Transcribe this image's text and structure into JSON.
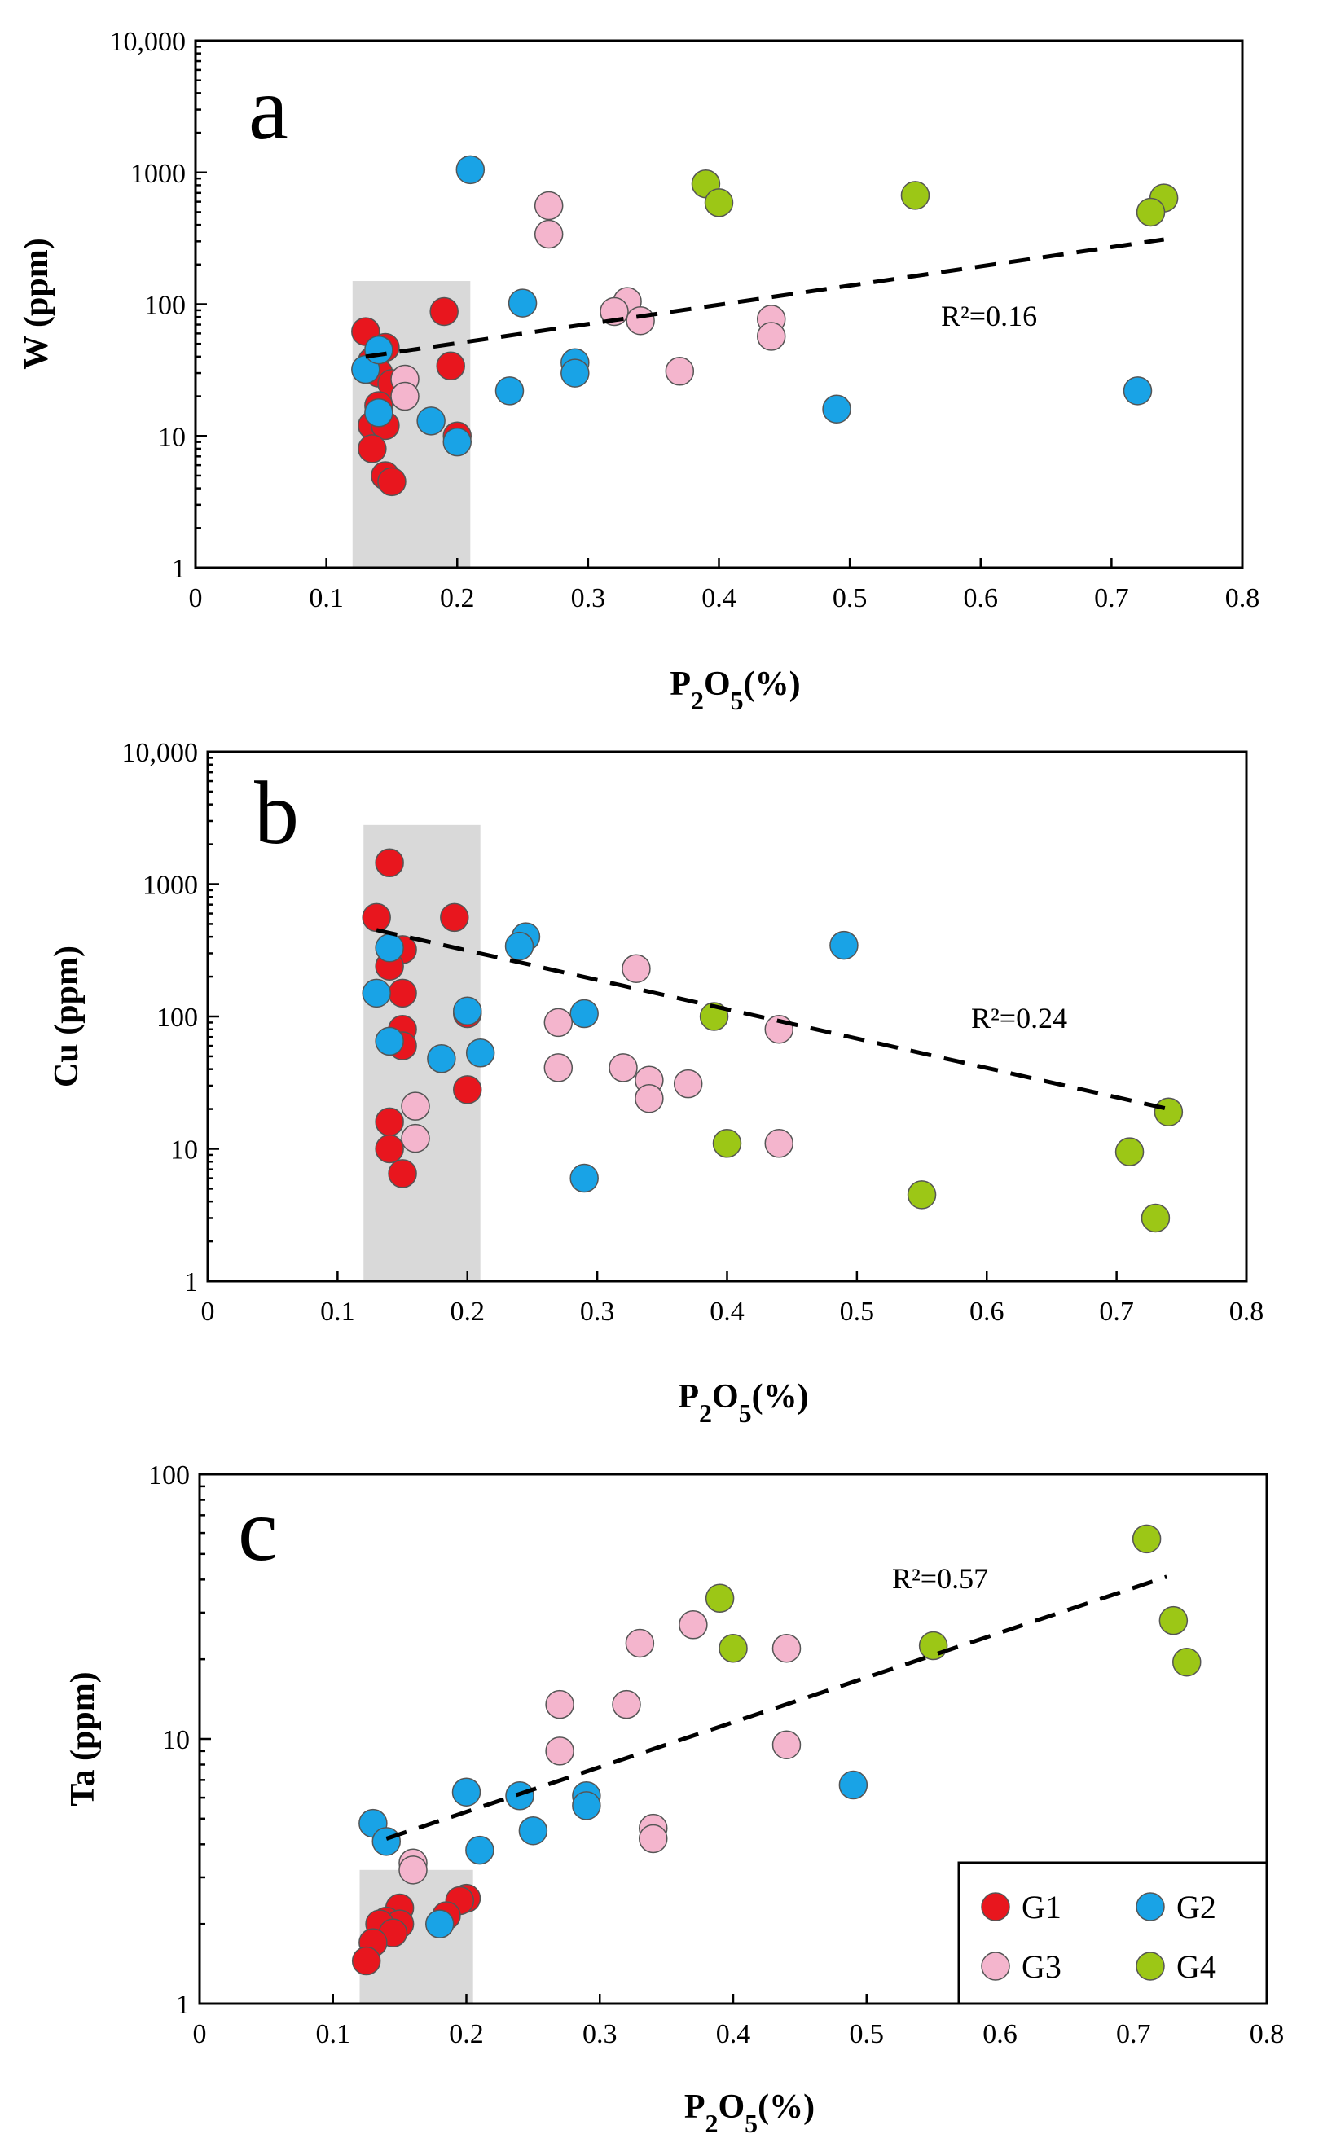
{
  "colors": {
    "G1": "#e8161e",
    "G2": "#19a3e6",
    "G3": "#f4b5cd",
    "G4": "#9cc716",
    "highlight": "#d9d9d9"
  },
  "legend": [
    {
      "key": "G1",
      "label": "G1"
    },
    {
      "key": "G2",
      "label": "G2"
    },
    {
      "key": "G3",
      "label": "G3"
    },
    {
      "key": "G4",
      "label": "G4"
    }
  ],
  "chart_data": [
    {
      "type": "scatter",
      "panel": "a",
      "xlabel": "P2O5(%)",
      "ylabel": "W (ppm)",
      "xlim": [
        0,
        0.8
      ],
      "ylim": [
        1,
        10000
      ],
      "yscale": "log",
      "xticks": [
        "0",
        "0.1",
        "0.2",
        "0.3",
        "0.4",
        "0.5",
        "0.6",
        "0.7",
        "0.8"
      ],
      "yticks": [
        "1",
        "10",
        "100",
        "1000",
        "10,000"
      ],
      "highlight": {
        "x": [
          0.12,
          0.21
        ],
        "y": [
          1,
          150
        ]
      },
      "trend": {
        "x": [
          0.13,
          0.74
        ],
        "y": [
          40,
          310
        ],
        "r2": "R²=0.16"
      },
      "series": [
        {
          "name": "G1",
          "points": [
            [
              0.13,
              62
            ],
            [
              0.135,
              37
            ],
            [
              0.14,
              30
            ],
            [
              0.145,
              47
            ],
            [
              0.15,
              25
            ],
            [
              0.14,
              17
            ],
            [
              0.135,
              12
            ],
            [
              0.145,
              12
            ],
            [
              0.135,
              8
            ],
            [
              0.145,
              5
            ],
            [
              0.15,
              4.5
            ],
            [
              0.19,
              88
            ],
            [
              0.195,
              34
            ],
            [
              0.2,
              10
            ]
          ]
        },
        {
          "name": "G2",
          "points": [
            [
              0.21,
              1050
            ],
            [
              0.25,
              102
            ],
            [
              0.29,
              36
            ],
            [
              0.29,
              30
            ],
            [
              0.24,
              22
            ],
            [
              0.13,
              32
            ],
            [
              0.14,
              45
            ],
            [
              0.14,
              15
            ],
            [
              0.18,
              13
            ],
            [
              0.2,
              9
            ],
            [
              0.49,
              16
            ],
            [
              0.72,
              22
            ]
          ]
        },
        {
          "name": "G3",
          "points": [
            [
              0.27,
              560
            ],
            [
              0.27,
              340
            ],
            [
              0.33,
              105
            ],
            [
              0.32,
              88
            ],
            [
              0.34,
              75
            ],
            [
              0.44,
              77
            ],
            [
              0.44,
              57
            ],
            [
              0.37,
              31
            ],
            [
              0.16,
              27
            ],
            [
              0.16,
              20
            ]
          ]
        },
        {
          "name": "G4",
          "points": [
            [
              0.39,
              820
            ],
            [
              0.4,
              590
            ],
            [
              0.55,
              670
            ],
            [
              0.74,
              640
            ],
            [
              0.73,
              500
            ]
          ]
        }
      ]
    },
    {
      "type": "scatter",
      "panel": "b",
      "xlabel": "P2O5(%)",
      "ylabel": "Cu (ppm)",
      "xlim": [
        0,
        0.8
      ],
      "ylim": [
        1,
        10000
      ],
      "yscale": "log",
      "xticks": [
        "0",
        "0.1",
        "0.2",
        "0.3",
        "0.4",
        "0.5",
        "0.6",
        "0.7",
        "0.8"
      ],
      "yticks": [
        "1",
        "10",
        "100",
        "1000",
        "10,000"
      ],
      "highlight": {
        "x": [
          0.12,
          0.21
        ],
        "y": [
          1,
          2800
        ]
      },
      "trend": {
        "x": [
          0.13,
          0.74
        ],
        "y": [
          450,
          20
        ],
        "r2": "R²=0.24"
      },
      "series": [
        {
          "name": "G1",
          "points": [
            [
              0.14,
              1450
            ],
            [
              0.13,
              560
            ],
            [
              0.19,
              560
            ],
            [
              0.15,
              320
            ],
            [
              0.14,
              240
            ],
            [
              0.15,
              150
            ],
            [
              0.2,
              105
            ],
            [
              0.15,
              80
            ],
            [
              0.15,
              60
            ],
            [
              0.2,
              28
            ],
            [
              0.14,
              16
            ],
            [
              0.14,
              10
            ],
            [
              0.15,
              6.5
            ]
          ]
        },
        {
          "name": "G2",
          "points": [
            [
              0.245,
              400
            ],
            [
              0.24,
              340
            ],
            [
              0.49,
              345
            ],
            [
              0.14,
              330
            ],
            [
              0.13,
              150
            ],
            [
              0.2,
              110
            ],
            [
              0.29,
              105
            ],
            [
              0.14,
              65
            ],
            [
              0.21,
              53
            ],
            [
              0.18,
              48
            ],
            [
              0.29,
              6
            ]
          ]
        },
        {
          "name": "G3",
          "points": [
            [
              0.33,
              230
            ],
            [
              0.27,
              90
            ],
            [
              0.44,
              80
            ],
            [
              0.27,
              41
            ],
            [
              0.32,
              41
            ],
            [
              0.34,
              33
            ],
            [
              0.37,
              31
            ],
            [
              0.34,
              24
            ],
            [
              0.16,
              21
            ],
            [
              0.16,
              12
            ],
            [
              0.44,
              11
            ]
          ]
        },
        {
          "name": "G4",
          "points": [
            [
              0.39,
              100
            ],
            [
              0.74,
              19
            ],
            [
              0.4,
              11
            ],
            [
              0.71,
              9.5
            ],
            [
              0.55,
              4.5
            ],
            [
              0.73,
              3
            ]
          ]
        }
      ]
    },
    {
      "type": "scatter",
      "panel": "c",
      "xlabel": "P2O5(%)",
      "ylabel": "Ta (ppm)",
      "xlim": [
        0,
        0.8
      ],
      "ylim": [
        1,
        100
      ],
      "yscale": "log",
      "xticks": [
        "0",
        "0.1",
        "0.2",
        "0.3",
        "0.4",
        "0.5",
        "0.6",
        "0.7",
        "0.8"
      ],
      "yticks": [
        "1",
        "10",
        "100"
      ],
      "highlight": {
        "x": [
          0.12,
          0.205
        ],
        "y": [
          1,
          3.2
        ]
      },
      "trend": {
        "x": [
          0.14,
          0.725
        ],
        "y": [
          4.2,
          41
        ],
        "r2": "R²=0.57"
      },
      "series": [
        {
          "name": "G1",
          "points": [
            [
              0.2,
              2.5
            ],
            [
              0.195,
              2.45
            ],
            [
              0.15,
              2.3
            ],
            [
              0.14,
              2.05
            ],
            [
              0.15,
              2.0
            ],
            [
              0.135,
              2.0
            ],
            [
              0.145,
              1.85
            ],
            [
              0.185,
              2.15
            ],
            [
              0.13,
              1.7
            ],
            [
              0.125,
              1.45
            ]
          ]
        },
        {
          "name": "G2",
          "points": [
            [
              0.2,
              6.3
            ],
            [
              0.24,
              6.1
            ],
            [
              0.29,
              6.1
            ],
            [
              0.29,
              5.6
            ],
            [
              0.13,
              4.8
            ],
            [
              0.14,
              4.1
            ],
            [
              0.25,
              4.5
            ],
            [
              0.21,
              3.8
            ],
            [
              0.18,
              2.0
            ],
            [
              0.49,
              6.7
            ]
          ]
        },
        {
          "name": "G3",
          "points": [
            [
              0.37,
              27
            ],
            [
              0.33,
              23
            ],
            [
              0.44,
              22
            ],
            [
              0.27,
              13.5
            ],
            [
              0.32,
              13.5
            ],
            [
              0.44,
              9.5
            ],
            [
              0.27,
              9.0
            ],
            [
              0.34,
              4.6
            ],
            [
              0.34,
              4.2
            ],
            [
              0.16,
              3.4
            ],
            [
              0.16,
              3.2
            ]
          ]
        },
        {
          "name": "G4",
          "points": [
            [
              0.71,
              57
            ],
            [
              0.39,
              34
            ],
            [
              0.73,
              28
            ],
            [
              0.4,
              22
            ],
            [
              0.55,
              22.5
            ],
            [
              0.74,
              19.5
            ]
          ]
        }
      ]
    }
  ]
}
